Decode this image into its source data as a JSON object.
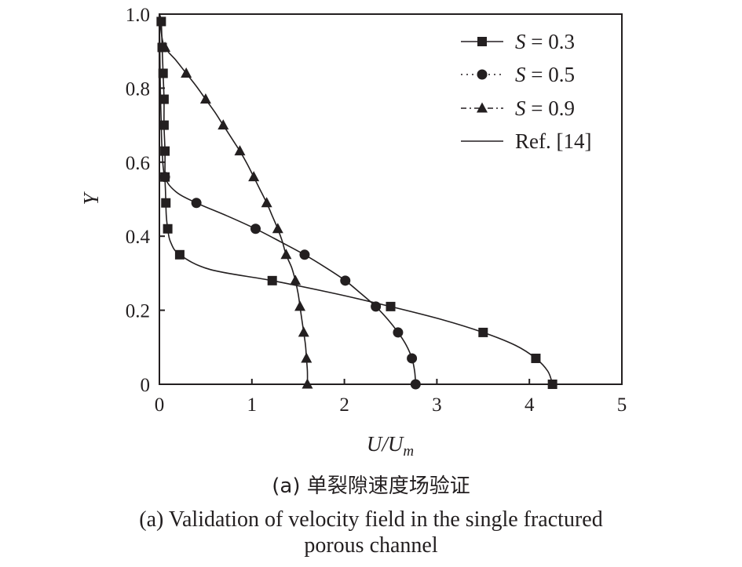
{
  "chart_data": {
    "type": "line",
    "xlabel": "U/U",
    "xlabel_sub": "m",
    "ylabel": "Y",
    "xlim": [
      0,
      5
    ],
    "ylim": [
      0,
      1.0
    ],
    "x_ticks": [
      "0",
      "1",
      "2",
      "3",
      "4",
      "5"
    ],
    "y_ticks": [
      "0",
      "0.2",
      "0.4",
      "0.6",
      "0.8",
      "1.0"
    ],
    "legend_position": "top-right",
    "grid": false,
    "series": [
      {
        "label_var": "S",
        "label_rest": " = 0.3",
        "marker": "square",
        "line_style": "solid",
        "points": [
          [
            4.25,
            0.0
          ],
          [
            4.07,
            0.07
          ],
          [
            3.5,
            0.14
          ],
          [
            2.5,
            0.21
          ],
          [
            1.22,
            0.28
          ],
          [
            0.22,
            0.35
          ],
          [
            0.09,
            0.42
          ],
          [
            0.07,
            0.49
          ],
          [
            0.06,
            0.56
          ],
          [
            0.06,
            0.63
          ],
          [
            0.05,
            0.7
          ],
          [
            0.05,
            0.77
          ],
          [
            0.04,
            0.84
          ],
          [
            0.03,
            0.91
          ],
          [
            0.02,
            0.98
          ]
        ]
      },
      {
        "label_var": "S",
        "label_rest": " = 0.5",
        "marker": "circle",
        "line_style": "dotted",
        "points": [
          [
            2.77,
            0.0
          ],
          [
            2.73,
            0.07
          ],
          [
            2.58,
            0.14
          ],
          [
            2.34,
            0.21
          ],
          [
            2.01,
            0.28
          ],
          [
            1.57,
            0.35
          ],
          [
            1.04,
            0.42
          ],
          [
            0.4,
            0.49
          ],
          [
            0.06,
            0.56
          ]
        ]
      },
      {
        "label_var": "S",
        "label_rest": " = 0.9",
        "marker": "triangle",
        "line_style": "dashdot",
        "points": [
          [
            1.6,
            0.0
          ],
          [
            1.59,
            0.07
          ],
          [
            1.56,
            0.14
          ],
          [
            1.52,
            0.21
          ],
          [
            1.47,
            0.28
          ],
          [
            1.37,
            0.35
          ],
          [
            1.28,
            0.42
          ],
          [
            1.16,
            0.49
          ],
          [
            1.02,
            0.56
          ],
          [
            0.87,
            0.63
          ],
          [
            0.69,
            0.7
          ],
          [
            0.5,
            0.77
          ],
          [
            0.29,
            0.84
          ],
          [
            0.06,
            0.91
          ]
        ]
      }
    ],
    "reference": {
      "label": "Ref. [14]",
      "line_style": "solid",
      "curves": [
        [
          [
            4.25,
            0.0
          ],
          [
            4.2,
            0.035
          ],
          [
            4.07,
            0.07
          ],
          [
            3.85,
            0.105
          ],
          [
            3.5,
            0.14
          ],
          [
            3.05,
            0.175
          ],
          [
            2.5,
            0.21
          ],
          [
            1.9,
            0.245
          ],
          [
            1.22,
            0.28
          ],
          [
            0.55,
            0.31
          ],
          [
            0.22,
            0.35
          ],
          [
            0.12,
            0.385
          ],
          [
            0.09,
            0.42
          ],
          [
            0.075,
            0.455
          ],
          [
            0.07,
            0.49
          ],
          [
            0.065,
            0.525
          ],
          [
            0.06,
            0.56
          ],
          [
            0.06,
            0.63
          ],
          [
            0.05,
            0.7
          ],
          [
            0.05,
            0.77
          ],
          [
            0.04,
            0.84
          ],
          [
            0.03,
            0.91
          ],
          [
            0.02,
            0.98
          ],
          [
            0.0,
            1.0
          ]
        ],
        [
          [
            2.77,
            0.0
          ],
          [
            2.76,
            0.035
          ],
          [
            2.73,
            0.07
          ],
          [
            2.67,
            0.105
          ],
          [
            2.58,
            0.14
          ],
          [
            2.47,
            0.175
          ],
          [
            2.34,
            0.21
          ],
          [
            2.18,
            0.245
          ],
          [
            2.01,
            0.28
          ],
          [
            1.8,
            0.315
          ],
          [
            1.57,
            0.35
          ],
          [
            1.31,
            0.385
          ],
          [
            1.04,
            0.42
          ],
          [
            0.73,
            0.455
          ],
          [
            0.4,
            0.49
          ],
          [
            0.18,
            0.52
          ],
          [
            0.06,
            0.56
          ],
          [
            0.03,
            0.63
          ],
          [
            0.02,
            0.7
          ],
          [
            0.01,
            0.8
          ],
          [
            0.005,
            0.9
          ],
          [
            0.0,
            1.0
          ]
        ],
        [
          [
            1.6,
            0.0
          ],
          [
            1.6,
            0.035
          ],
          [
            1.59,
            0.07
          ],
          [
            1.58,
            0.105
          ],
          [
            1.56,
            0.14
          ],
          [
            1.54,
            0.175
          ],
          [
            1.52,
            0.21
          ],
          [
            1.5,
            0.245
          ],
          [
            1.47,
            0.28
          ],
          [
            1.43,
            0.315
          ],
          [
            1.37,
            0.35
          ],
          [
            1.33,
            0.385
          ],
          [
            1.28,
            0.42
          ],
          [
            1.22,
            0.455
          ],
          [
            1.16,
            0.49
          ],
          [
            1.09,
            0.525
          ],
          [
            1.02,
            0.56
          ],
          [
            0.95,
            0.595
          ],
          [
            0.87,
            0.63
          ],
          [
            0.78,
            0.665
          ],
          [
            0.69,
            0.7
          ],
          [
            0.6,
            0.735
          ],
          [
            0.5,
            0.77
          ],
          [
            0.4,
            0.805
          ],
          [
            0.29,
            0.84
          ],
          [
            0.18,
            0.875
          ],
          [
            0.06,
            0.91
          ],
          [
            0.02,
            0.95
          ],
          [
            0.0,
            1.0
          ]
        ]
      ]
    }
  },
  "captions": {
    "chinese": "(a) 单裂隙速度场验证",
    "english_line1": "(a) Validation of velocity field in the single fractured",
    "english_line2": "porous channel"
  },
  "colors": {
    "ink": "#231f20",
    "background": "#ffffff"
  }
}
